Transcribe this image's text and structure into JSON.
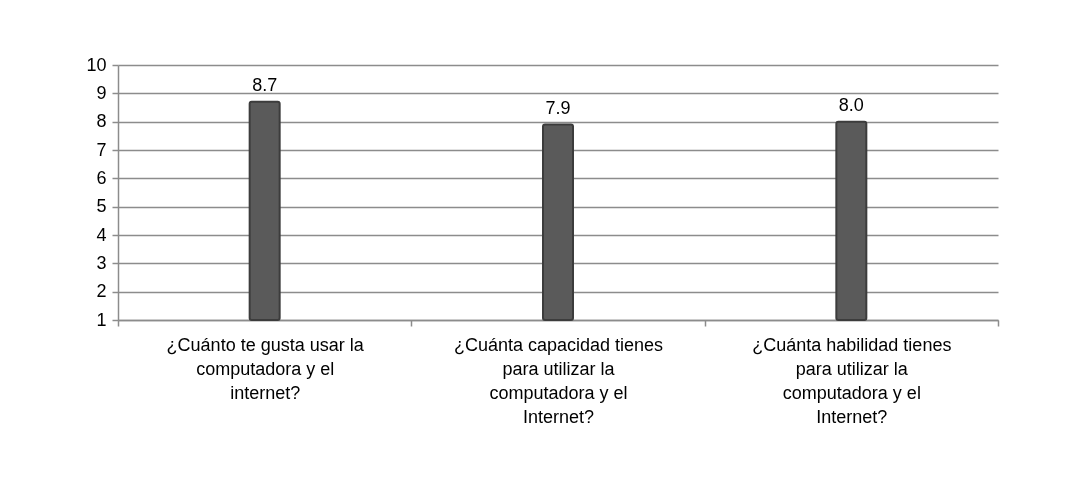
{
  "chart_data": {
    "type": "bar",
    "categories": [
      "¿Cuánto te gusta usar la computadora y el internet?",
      "¿Cuánta capacidad tienes para utilizar la computadora y el Internet?",
      "¿Cuánta habilidad tienes para utilizar la computadora y el Internet?"
    ],
    "values": [
      8.7,
      7.9,
      8.0
    ],
    "value_labels": [
      "8.7",
      "7.9",
      "8.0"
    ],
    "color": "#5a5a5a",
    "ylim": [
      1,
      10
    ],
    "yticks": [
      1,
      2,
      3,
      4,
      5,
      6,
      7,
      8,
      9,
      10
    ],
    "grid": "y"
  }
}
